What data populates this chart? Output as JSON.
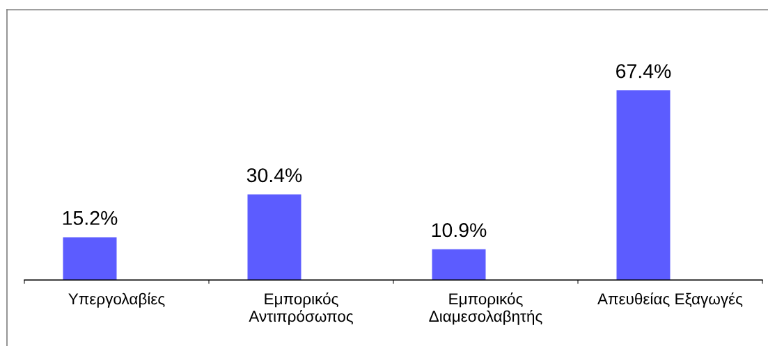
{
  "chart_data": {
    "type": "bar",
    "categories": [
      "Υπεργολαβίες",
      "Εμπορικός\nΑντιπρόσωπος",
      "Εμπορικός\nΔιαμεσολαβητής",
      "Απευθείας Εξαγωγές"
    ],
    "values": [
      15.2,
      30.4,
      10.9,
      67.4
    ],
    "color": "#5c5cff",
    "value_labels": [
      "15.2%",
      "30.4%",
      "10.9%",
      "67.4%"
    ],
    "tick_labels": "x"
  }
}
